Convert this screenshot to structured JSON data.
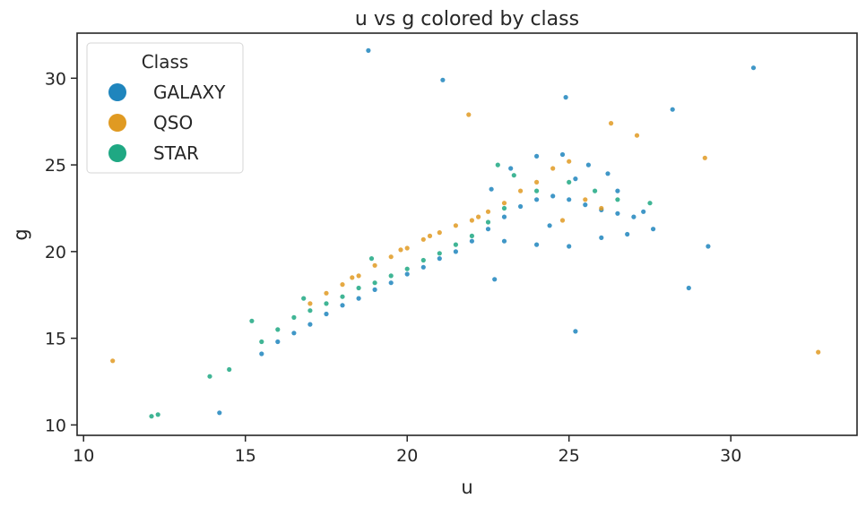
{
  "chart_data": {
    "type": "scatter",
    "title": "u vs g colored by class",
    "xlabel": "u",
    "ylabel": "g",
    "xlim": [
      9.8,
      33.9
    ],
    "ylim": [
      9.4,
      32.6
    ],
    "xticks": [
      10,
      15,
      20,
      25,
      30
    ],
    "yticks": [
      10,
      15,
      20,
      25,
      30
    ],
    "grid": false,
    "legend": {
      "title": "Class",
      "placement": "top-left"
    },
    "series": [
      {
        "name": "GALAXY",
        "color": "#1f85bd",
        "points": [
          [
            15.5,
            14.1
          ],
          [
            16.0,
            14.8
          ],
          [
            16.5,
            15.3
          ],
          [
            17.0,
            15.8
          ],
          [
            17.5,
            16.4
          ],
          [
            18.0,
            16.9
          ],
          [
            18.5,
            17.3
          ],
          [
            19.0,
            17.8
          ],
          [
            19.5,
            18.2
          ],
          [
            20.0,
            18.7
          ],
          [
            20.5,
            19.1
          ],
          [
            21.0,
            19.6
          ],
          [
            21.5,
            20.0
          ],
          [
            22.0,
            20.6
          ],
          [
            22.5,
            21.3
          ],
          [
            23.0,
            22.0
          ],
          [
            23.5,
            22.6
          ],
          [
            24.0,
            23.0
          ],
          [
            24.5,
            23.2
          ],
          [
            25.0,
            23.0
          ],
          [
            25.5,
            22.7
          ],
          [
            26.0,
            22.4
          ],
          [
            26.5,
            22.2
          ],
          [
            27.0,
            22.0
          ],
          [
            27.3,
            22.3
          ],
          [
            23.2,
            24.8
          ],
          [
            24.0,
            25.5
          ],
          [
            24.8,
            25.6
          ],
          [
            25.6,
            25.0
          ],
          [
            26.2,
            24.5
          ],
          [
            23.0,
            20.6
          ],
          [
            24.0,
            20.4
          ],
          [
            25.0,
            20.3
          ],
          [
            26.0,
            20.8
          ],
          [
            26.8,
            21.0
          ],
          [
            22.6,
            23.6
          ],
          [
            24.4,
            21.5
          ],
          [
            25.2,
            24.2
          ],
          [
            26.5,
            23.5
          ],
          [
            27.6,
            21.3
          ],
          [
            28.2,
            28.2
          ],
          [
            30.7,
            30.6
          ],
          [
            21.1,
            29.9
          ],
          [
            18.8,
            31.6
          ],
          [
            29.3,
            20.3
          ],
          [
            28.7,
            17.9
          ],
          [
            25.2,
            15.4
          ],
          [
            14.2,
            10.7
          ],
          [
            22.7,
            18.4
          ],
          [
            24.9,
            28.9
          ]
        ]
      },
      {
        "name": "QSO",
        "color": "#e09a22",
        "points": [
          [
            17.0,
            17.0
          ],
          [
            17.5,
            17.6
          ],
          [
            18.0,
            18.1
          ],
          [
            18.5,
            18.6
          ],
          [
            19.0,
            19.2
          ],
          [
            19.5,
            19.7
          ],
          [
            20.0,
            20.2
          ],
          [
            20.5,
            20.7
          ],
          [
            21.0,
            21.1
          ],
          [
            21.5,
            21.5
          ],
          [
            22.0,
            21.8
          ],
          [
            22.5,
            22.3
          ],
          [
            23.0,
            22.8
          ],
          [
            23.5,
            23.5
          ],
          [
            24.0,
            24.0
          ],
          [
            24.5,
            24.8
          ],
          [
            25.0,
            25.2
          ],
          [
            25.5,
            23.0
          ],
          [
            26.0,
            22.5
          ],
          [
            24.8,
            21.8
          ],
          [
            10.9,
            13.7
          ],
          [
            32.7,
            14.2
          ],
          [
            21.9,
            27.9
          ],
          [
            26.3,
            27.4
          ],
          [
            27.1,
            26.7
          ],
          [
            29.2,
            25.4
          ],
          [
            18.3,
            18.5
          ],
          [
            19.8,
            20.1
          ],
          [
            20.7,
            20.9
          ],
          [
            22.2,
            22.0
          ]
        ]
      },
      {
        "name": "STAR",
        "color": "#1fa883",
        "points": [
          [
            12.1,
            10.5
          ],
          [
            12.3,
            10.6
          ],
          [
            14.5,
            13.2
          ],
          [
            15.5,
            14.8
          ],
          [
            16.0,
            15.5
          ],
          [
            16.5,
            16.2
          ],
          [
            17.0,
            16.6
          ],
          [
            17.5,
            17.0
          ],
          [
            18.0,
            17.4
          ],
          [
            18.5,
            17.9
          ],
          [
            19.0,
            18.2
          ],
          [
            19.5,
            18.6
          ],
          [
            20.0,
            19.0
          ],
          [
            20.5,
            19.5
          ],
          [
            21.0,
            19.9
          ],
          [
            21.5,
            20.4
          ],
          [
            22.0,
            20.9
          ],
          [
            22.5,
            21.7
          ],
          [
            23.0,
            22.5
          ],
          [
            24.0,
            23.5
          ],
          [
            25.0,
            24.0
          ],
          [
            25.8,
            23.5
          ],
          [
            26.5,
            23.0
          ],
          [
            22.8,
            25.0
          ],
          [
            16.8,
            17.3
          ],
          [
            13.9,
            12.8
          ],
          [
            15.2,
            16.0
          ],
          [
            18.9,
            19.6
          ],
          [
            23.3,
            24.4
          ],
          [
            27.5,
            22.8
          ]
        ]
      }
    ]
  }
}
